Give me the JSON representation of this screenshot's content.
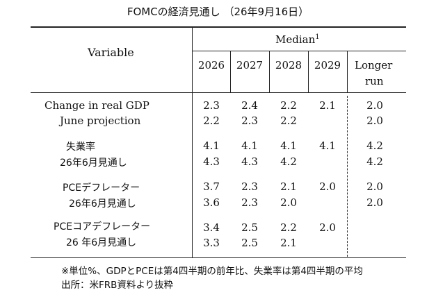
{
  "title": "FOMCの経済見通し （26年9月16日）",
  "header": {
    "variable": "Variable",
    "median": "Median",
    "median_sup": "1",
    "years": [
      "2026",
      "2027",
      "2028",
      "2029"
    ],
    "longer_run_line1": "Longer",
    "longer_run_line2": "run"
  },
  "rows": [
    {
      "label": "Change in real GDP",
      "values": [
        "2.3",
        "2.4",
        "2.2",
        "2.1",
        "2.0"
      ]
    },
    {
      "label": "June projection",
      "values": [
        "2.2",
        "2.3",
        "2.2",
        "",
        "2.0"
      ]
    },
    {
      "label": "失業率",
      "values": [
        "4.1",
        "4.1",
        "4.1",
        "4.1",
        "4.2"
      ]
    },
    {
      "label": "26年6月見通し",
      "values": [
        "4.3",
        "4.3",
        "4.2",
        "",
        "4.2"
      ]
    },
    {
      "label": "PCEデフレーター",
      "values": [
        "3.7",
        "2.3",
        "2.1",
        "2.0",
        "2.0"
      ]
    },
    {
      "label": "26年6月見通し",
      "values": [
        "3.6",
        "2.3",
        "2.0",
        "",
        "2.0"
      ]
    },
    {
      "label": "PCEコアデフレーター",
      "values": [
        "3.4",
        "2.5",
        "2.2",
        "2.0",
        ""
      ]
    },
    {
      "label": "26 年6月見通し",
      "values": [
        "3.3",
        "2.5",
        "2.1",
        "",
        ""
      ]
    }
  ],
  "notes": {
    "line1": "※単位%、GDPとPCEは第4四半期の前年比、失業率は第4四半期の平均",
    "line2": "出所：米FRB資料より抜粋"
  }
}
